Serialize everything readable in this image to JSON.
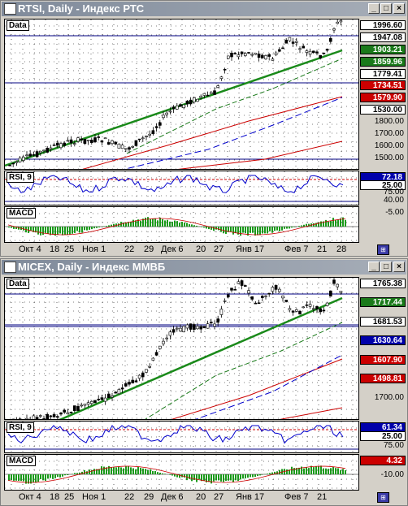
{
  "charts": [
    {
      "title": "RTSI, Daily - Индекс РТС",
      "data_label": "Data",
      "rsi_label": "RSI, 9",
      "macd_label": "MACD",
      "price_tags": [
        {
          "text": "1996.60",
          "bg": "#ffffff",
          "fg": "#000000"
        },
        {
          "text": "1947.08",
          "bg": "#ffffff",
          "fg": "#000000"
        },
        {
          "text": "1903.21",
          "bg": "#1a7a1a",
          "fg": "#ffffff"
        },
        {
          "text": "1859.96",
          "bg": "#1a7a1a",
          "fg": "#ffffff"
        },
        {
          "text": "1779.41",
          "bg": "#ffffff",
          "fg": "#000000"
        },
        {
          "text": "1734.51",
          "bg": "#cc0000",
          "fg": "#ffffff"
        },
        {
          "text": "1579.90",
          "bg": "#cc0000",
          "fg": "#ffffff"
        },
        {
          "text": "1530.00",
          "bg": "#ffffff",
          "fg": "#000000"
        }
      ],
      "price_ticks": [
        "1800.00",
        "1700.00",
        "1600.00",
        "1500.00"
      ],
      "rsi_tags": [
        {
          "text": "72.18",
          "bg": "#0000aa",
          "fg": "#ffffff"
        },
        {
          "text": "25.00",
          "bg": "#ffffff",
          "fg": "#000000"
        }
      ],
      "rsi_ticks": [
        "75.00",
        "40.00"
      ],
      "macd_tags": [],
      "macd_ticks": [
        "-5.00"
      ],
      "dates": [
        "Окт 4",
        "18",
        "25",
        "Ноя 1",
        "22",
        "29",
        "Дек 6",
        "20",
        "27",
        "Янв 17",
        "Фев 7",
        "21",
        "28"
      ]
    },
    {
      "title": "MICEX, Daily - Индекс ММВБ",
      "data_label": "Data",
      "rsi_label": "RSI, 9",
      "macd_label": "MACD",
      "price_tags": [
        {
          "text": "1765.38",
          "bg": "#ffffff",
          "fg": "#000000"
        },
        {
          "text": "1717.44",
          "bg": "#1a7a1a",
          "fg": "#ffffff"
        },
        {
          "text": "1681.53",
          "bg": "#ffffff",
          "fg": "#000000"
        },
        {
          "text": "1630.64",
          "bg": "#0000aa",
          "fg": "#ffffff"
        },
        {
          "text": "1607.90",
          "bg": "#cc0000",
          "fg": "#ffffff"
        },
        {
          "text": "1498.81",
          "bg": "#cc0000",
          "fg": "#ffffff"
        }
      ],
      "price_ticks": [
        "1700.00"
      ],
      "rsi_tags": [
        {
          "text": "61.34",
          "bg": "#0000aa",
          "fg": "#ffffff"
        },
        {
          "text": "25.00",
          "bg": "#ffffff",
          "fg": "#000000"
        }
      ],
      "rsi_ticks": [
        "75.00"
      ],
      "macd_tags": [
        {
          "text": "4.32",
          "bg": "#cc0000",
          "fg": "#ffffff"
        }
      ],
      "macd_ticks": [
        "-10.00"
      ],
      "dates": [
        "Окт 4",
        "18",
        "25",
        "Ноя 1",
        "22",
        "29",
        "Дек 6",
        "20",
        "27",
        "Янв 17",
        "Фев 7",
        "21"
      ]
    }
  ],
  "chart_data": [
    {
      "type": "candlestick",
      "title": "RTSI, Daily - Индекс РТС",
      "ylim": [
        1500,
        2000
      ],
      "overlays": [
        "green trendline",
        "green dashed MA",
        "red MA",
        "blue dashed MA",
        "red long MA"
      ],
      "last_value": 1996.6
    },
    {
      "type": "candlestick",
      "title": "MICEX, Daily - Индекс ММВБ",
      "ylim": [
        1480,
        1780
      ],
      "overlays": [
        "green trendline",
        "green dashed MA",
        "red MA",
        "blue dashed MA",
        "red long MA"
      ],
      "last_value": 1765.38
    }
  ]
}
